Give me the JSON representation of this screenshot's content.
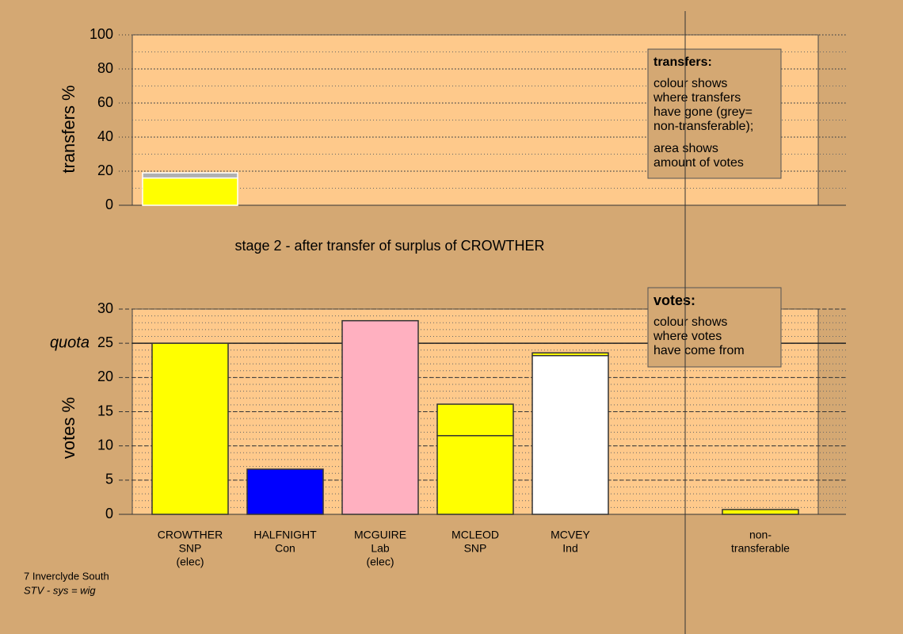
{
  "chart_data": [
    {
      "type": "bar",
      "ylabel": "transfers %",
      "ylim": [
        0,
        100
      ],
      "yticks": [
        0,
        20,
        40,
        60,
        80,
        100
      ],
      "minor_step": 10,
      "grid_style": "dotted",
      "bar_edge": "#ffffff",
      "bar_width": 1.0,
      "categories": [
        null
      ],
      "series": [
        {
          "color": "#ffff00",
          "values": [
            16
          ]
        },
        {
          "color": "#b0b0b0",
          "values": [
            3
          ]
        }
      ],
      "legend_box": {
        "title": "transfers:",
        "paragraphs": [
          [
            "colour shows",
            "where transfers",
            "have gone (grey=",
            "non-transferable);"
          ],
          [
            "area shows",
            "amount of votes"
          ]
        ]
      }
    },
    {
      "type": "bar",
      "title": "stage 2 - after transfer of surplus of CROWTHER",
      "ylabel": "votes %",
      "ylim": [
        0,
        30
      ],
      "yticks": [
        0,
        5,
        10,
        15,
        20,
        25,
        30
      ],
      "minor_step": 1,
      "grid_style": "dashed",
      "bar_edge": "#333333",
      "bar_width": 0.8,
      "quota": {
        "value": 25,
        "label": "quota"
      },
      "categories": [
        [
          "CROWTHER",
          "SNP",
          "(elec)"
        ],
        [
          "HALFNIGHT",
          "Con"
        ],
        [
          "MCGUIRE",
          "Lab",
          "(elec)"
        ],
        [
          "MCLEOD",
          "SNP"
        ],
        [
          "MCVEY",
          "Ind"
        ],
        null,
        [
          "non-",
          "transferable"
        ]
      ],
      "series": [
        {
          "colors": [
            "#ffff00",
            "#0000ff",
            "#ffb0c0",
            "#ffff00",
            "#ffffff",
            null,
            null
          ],
          "values": [
            25,
            6.6,
            28.3,
            11.5,
            23.2,
            null,
            null
          ]
        },
        {
          "color": "#ffff00",
          "values": [
            null,
            null,
            null,
            4.6,
            0.4,
            null,
            0.7
          ]
        }
      ],
      "legend_box": {
        "title": "votes:",
        "paragraphs": [
          [
            "colour shows",
            "where votes",
            "have come from"
          ]
        ]
      }
    }
  ],
  "footer": [
    "7 Inverclyde South",
    "STV - sys = wig"
  ]
}
